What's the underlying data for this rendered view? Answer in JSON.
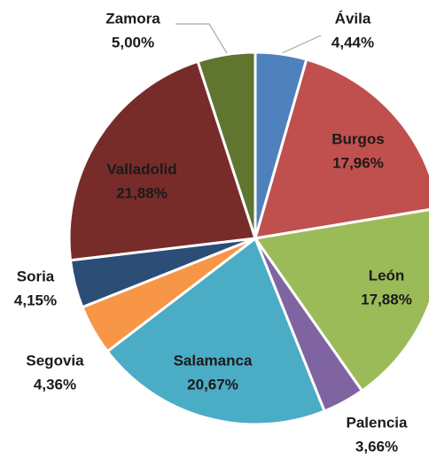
{
  "chart_data": {
    "type": "pie",
    "categories": [
      "Ávila",
      "Burgos",
      "León",
      "Palencia",
      "Salamanca",
      "Segovia",
      "Soria",
      "Valladolid",
      "Zamora"
    ],
    "values": [
      4.44,
      17.96,
      17.88,
      3.66,
      20.67,
      4.36,
      4.15,
      21.88,
      5.0
    ],
    "value_labels": [
      "4,44%",
      "17,96%",
      "17,88%",
      "3,66%",
      "20,67%",
      "4,36%",
      "4,15%",
      "21,88%",
      "5,00%"
    ],
    "colors": [
      "#4f81bd",
      "#c0504d",
      "#9bbb59",
      "#8064a2",
      "#4bacc6",
      "#f79646",
      "#2c4d75",
      "#772c2a",
      "#5f7530"
    ]
  }
}
